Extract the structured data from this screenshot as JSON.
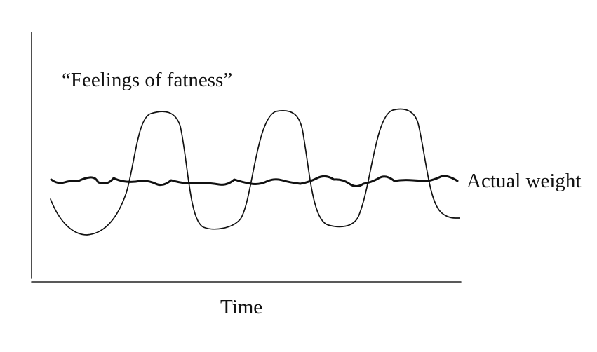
{
  "labels": {
    "feelings_curve": "“Feelings of  fatness”",
    "actual_weight_curve": "Actual weight",
    "x_axis": "Time"
  },
  "colors": {
    "ink": "#111111",
    "background": "#ffffff"
  }
}
